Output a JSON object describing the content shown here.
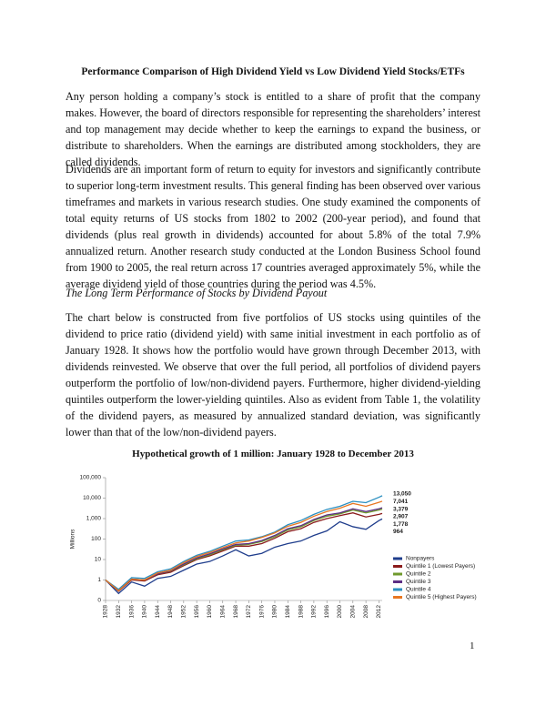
{
  "document": {
    "title": "Performance Comparison of High Dividend Yield vs Low Dividend Yield Stocks/ETFs",
    "paragraphs": [
      "Any person holding a company’s stock is entitled to a share of profit that the company makes. However, the board of directors responsible for representing the shareholders’ interest and top management may decide whether to keep the earnings to expand the business, or distribute to shareholders. When the earnings are distributed among stockholders, they are called dividends.",
      "Dividends are an important form of return to equity for investors and significantly contribute to superior long-term investment results. This general finding has been observed over various timeframes and markets in various research studies. One study examined the components of total equity returns of US stocks from 1802 to 2002 (200-year period), and found that dividends (plus real growth in dividends) accounted for about 5.8% of the total 7.9% annualized return. Another research study conducted at the London Business School found from 1900 to 2005, the real return across 17 countries averaged approximately 5%, while the average dividend yield of those countries during the period was 4.5%.",
      "The chart below is constructed from five portfolios of US stocks using quintiles of the dividend to price ratio (dividend yield) with same initial investment in each portfolio as of January 1928. It shows how the portfolio would have grown through December 2013, with dividends reinvested. We observe that over the full period, all portfolios of dividend payers outperform the portfolio of low/non-dividend payers. Furthermore, higher dividend-yielding quintiles outperform the lower-yielding quintiles. Also as evident from Table 1, the volatility of the dividend payers, as measured by annualized standard deviation, was significantly lower than that of the low/non-dividend payers."
    ],
    "section_heading": "The Long Term Performance of Stocks by Dividend Payout",
    "page_number": 1
  },
  "chart_data": {
    "type": "line",
    "title": "Hypothetical growth of 1 million: January 1928 to December 2013",
    "y_label": "Millions",
    "log_y": true,
    "x": [
      1928,
      1932,
      1936,
      1940,
      1944,
      1948,
      1952,
      1956,
      1960,
      1964,
      1968,
      1972,
      1976,
      1980,
      1984,
      1988,
      1992,
      1996,
      2000,
      2004,
      2008,
      2012,
      2013
    ],
    "xlim": [
      1928,
      2013
    ],
    "xticks": [
      1928,
      1932,
      1936,
      1940,
      1944,
      1948,
      1952,
      1956,
      1960,
      1964,
      1968,
      1972,
      1976,
      1980,
      1984,
      1988,
      1992,
      1996,
      2000,
      2004,
      2008,
      2012
    ],
    "ylim": [
      0.1,
      100000
    ],
    "yticks": [
      {
        "value": 0.1,
        "label": "0"
      },
      1,
      10,
      100,
      {
        "value": 1000,
        "label": "1,000"
      },
      {
        "value": 10000,
        "label": "10,000"
      },
      {
        "value": 100000,
        "label": "100,000"
      }
    ],
    "legend": "right",
    "series": [
      {
        "name": "Nonpayers",
        "color": "#1f3d8c",
        "values": [
          1,
          0.22,
          0.8,
          0.5,
          1.2,
          1.5,
          3,
          6,
          8,
          15,
          30,
          15,
          20,
          40,
          60,
          80,
          150,
          250,
          700,
          400,
          300,
          800,
          964
        ],
        "end_label": "964"
      },
      {
        "name": "Quintile 1 (Lowest Payers)",
        "color": "#8b1c1c",
        "values": [
          1,
          0.28,
          1.0,
          0.9,
          1.8,
          2.4,
          5,
          10,
          15,
          26,
          45,
          45,
          60,
          110,
          230,
          320,
          650,
          1000,
          1400,
          1900,
          1200,
          1600,
          1778
        ],
        "end_label": "1,778"
      },
      {
        "name": "Quintile 2",
        "color": "#6f9a2c",
        "values": [
          1,
          0.3,
          1.1,
          1.0,
          2,
          2.7,
          5.5,
          11,
          17,
          30,
          50,
          55,
          75,
          130,
          280,
          400,
          800,
          1300,
          1700,
          2600,
          1900,
          2600,
          2907
        ],
        "end_label": "2,907"
      },
      {
        "name": "Quintile 3",
        "color": "#5b2d84",
        "values": [
          1,
          0.3,
          1.1,
          1.0,
          2,
          2.8,
          6,
          12,
          19,
          33,
          55,
          60,
          85,
          150,
          320,
          450,
          900,
          1500,
          1900,
          3000,
          2200,
          3000,
          3379
        ],
        "end_label": "3,379"
      },
      {
        "name": "Quintile 4",
        "color": "#2b8fc0",
        "values": [
          1,
          0.35,
          1.3,
          1.2,
          2.5,
          3.5,
          8,
          16,
          25,
          45,
          80,
          90,
          130,
          220,
          500,
          800,
          1600,
          2800,
          4000,
          7000,
          6000,
          11000,
          13050
        ],
        "end_label": "13,050"
      },
      {
        "name": "Quintile 5 (Highest Payers)",
        "color": "#e87722",
        "values": [
          1,
          0.3,
          1.1,
          1.0,
          2.2,
          3,
          7,
          14,
          22,
          38,
          65,
          80,
          120,
          200,
          420,
          650,
          1300,
          2200,
          3200,
          5500,
          4000,
          6200,
          7041
        ],
        "end_label": "7,041"
      }
    ]
  }
}
